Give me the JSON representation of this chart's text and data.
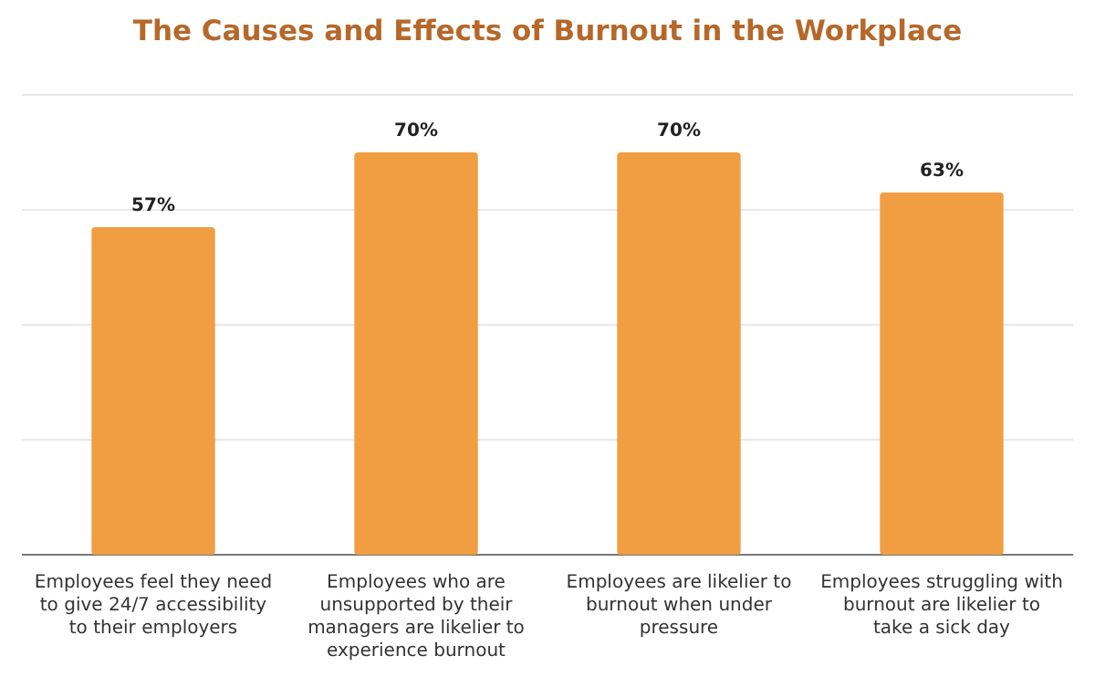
{
  "chart_data": {
    "type": "bar",
    "title": "The Causes and Effects of Burnout in the Workplace",
    "categories": [
      "Employees feel they need to give 24/7 accessibility to their employers",
      "Employees who are unsupported by their managers are likelier to experience burnout",
      "Employees are likelier to burnout when under pressure",
      "Employees struggling with burnout are likelier to take a sick day"
    ],
    "values": [
      57,
      70,
      70,
      63
    ],
    "value_labels": [
      "57%",
      "70%",
      "70%",
      "63%"
    ],
    "color": "#f09e41",
    "ylim": [
      0,
      80
    ],
    "yticks": [
      {
        "value": 0,
        "label": null
      },
      {
        "value": 20,
        "label": null
      },
      {
        "value": 40,
        "label": null
      },
      {
        "value": 60,
        "label": null
      },
      {
        "value": 80,
        "label": null
      }
    ],
    "grid": "y",
    "tick_labels": "x"
  }
}
